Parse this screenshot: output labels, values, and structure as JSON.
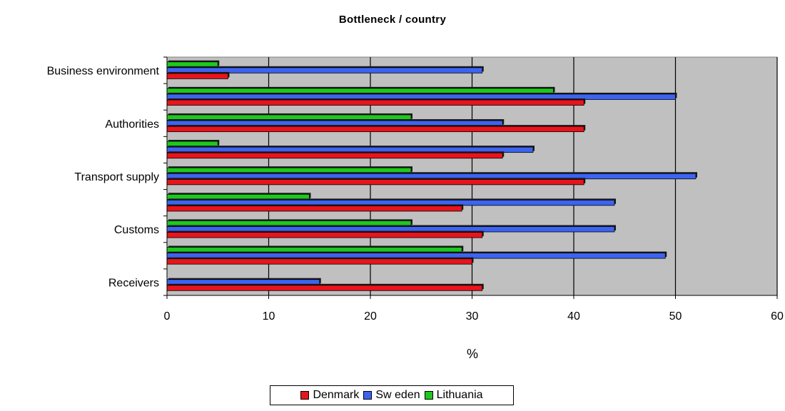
{
  "chart_data": {
    "type": "bar",
    "orientation": "horizontal",
    "title": "Bottleneck / country",
    "xlabel": "%",
    "ylabel": "",
    "xlim": [
      0,
      60
    ],
    "x_ticks": [
      0,
      10,
      20,
      30,
      40,
      50,
      60
    ],
    "categories": [
      "Receivers",
      "",
      "Customs",
      "",
      "Transport supply",
      "",
      "Authorities",
      "",
      "Business environment"
    ],
    "series": [
      {
        "name": "Denmark",
        "color": "#e8141c",
        "values": [
          31,
          30,
          31,
          29,
          41,
          33,
          41,
          41,
          6
        ]
      },
      {
        "name": "Sw eden",
        "color": "#3d64f0",
        "values": [
          15,
          49,
          44,
          44,
          52,
          36,
          33,
          50,
          31
        ]
      },
      {
        "name": "Lithuania",
        "color": "#1ec81e",
        "values": [
          0,
          29,
          24,
          14,
          24,
          5,
          24,
          38,
          5
        ]
      }
    ],
    "grid": true,
    "plot_background": "#c0c0c0",
    "legend_position": "bottom"
  }
}
